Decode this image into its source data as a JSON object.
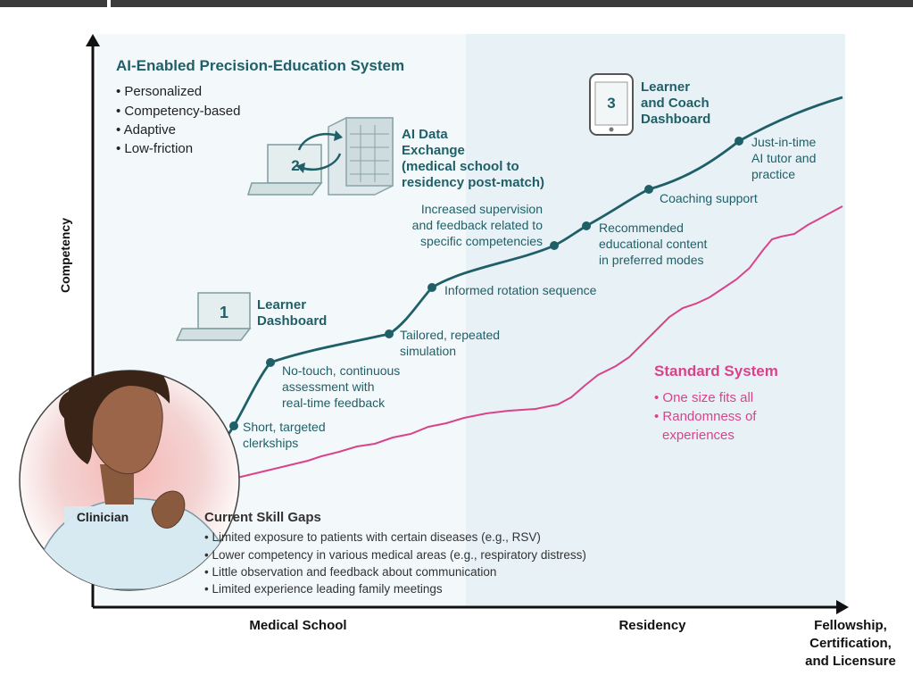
{
  "ai_system": {
    "title": "AI-Enabled Precision-Education System",
    "bullets": [
      "• Personalized",
      "• Competency-based",
      "• Adaptive",
      "• Low-friction"
    ]
  },
  "tools": {
    "learner_dashboard": {
      "number": "1",
      "line1": "Learner",
      "line2": "Dashboard"
    },
    "data_exchange": {
      "number": "2",
      "line1": "AI Data",
      "line2": "Exchange",
      "line3": "(medical school to",
      "line4": "residency post-match)"
    },
    "coach_dashboard": {
      "number": "3",
      "line1": "Learner",
      "line2": "and Coach",
      "line3": "Dashboard"
    }
  },
  "milestones": [
    {
      "line1": "Short, targeted",
      "line2": "clerkships"
    },
    {
      "line1": "No-touch, continuous",
      "line2": "assessment with",
      "line3": "real-time feedback"
    },
    {
      "line1": "Tailored, repeated",
      "line2": "simulation"
    },
    {
      "line1": "Informed rotation sequence"
    },
    {
      "line1": "Increased supervision",
      "line2": "and feedback related to",
      "line3": "specific competencies"
    },
    {
      "line1": "Recommended",
      "line2": "educational content",
      "line3": "in preferred modes"
    },
    {
      "line1": "Coaching support"
    },
    {
      "line1": "Just-in-time",
      "line2": "AI tutor and",
      "line3": "practice"
    }
  ],
  "standard_system": {
    "title": "Standard System",
    "bullets": [
      "• One size fits all",
      "• Randomness of",
      "experiences"
    ]
  },
  "skill_gaps": {
    "title": "Current Skill Gaps",
    "items": [
      "• Limited exposure to patients with certain diseases (e.g., RSV)",
      "• Lower competency in various medical areas (e.g., respiratory distress)",
      "• Little observation and feedback about communication",
      "• Limited experience leading family meetings"
    ]
  },
  "clinician_label": "Clinician",
  "axes": {
    "y_label": "Competency",
    "x_stages": [
      "Medical School",
      "Residency"
    ],
    "x_end": [
      "Fellowship,",
      "Certification,",
      "and Licensure"
    ]
  },
  "colors": {
    "teal": "#1f5f68",
    "pink": "#d9438a",
    "panel": "#f3f8fa",
    "panel_right": "#e8f2f6"
  },
  "icons": [
    "laptop-icon",
    "server-icon",
    "sync-arrows-icon",
    "smartphone-icon",
    "clinician-portrait"
  ]
}
